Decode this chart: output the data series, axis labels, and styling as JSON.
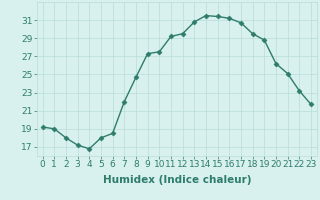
{
  "title": "",
  "xlabel": "Humidex (Indice chaleur)",
  "ylabel": "",
  "x_values": [
    0,
    1,
    2,
    3,
    4,
    5,
    6,
    7,
    8,
    9,
    10,
    11,
    12,
    13,
    14,
    15,
    16,
    17,
    18,
    19,
    20,
    21,
    22,
    23
  ],
  "y_values": [
    19.2,
    19.0,
    18.0,
    17.2,
    16.8,
    18.0,
    18.5,
    22.0,
    24.7,
    27.3,
    27.5,
    29.2,
    29.5,
    30.8,
    31.5,
    31.4,
    31.2,
    30.7,
    29.5,
    28.8,
    26.2,
    25.1,
    23.2,
    21.7
  ],
  "line_color": "#2e7d6b",
  "marker": "D",
  "marker_size": 2.5,
  "bg_color": "#d8f0ee",
  "grid_color": "#b8dcd8",
  "tick_color": "#2e7d6b",
  "label_color": "#2e7d6b",
  "ylim": [
    16,
    33
  ],
  "yticks": [
    17,
    19,
    21,
    23,
    25,
    27,
    29,
    31
  ],
  "xlim": [
    -0.5,
    23.5
  ],
  "xticks": [
    0,
    1,
    2,
    3,
    4,
    5,
    6,
    7,
    8,
    9,
    10,
    11,
    12,
    13,
    14,
    15,
    16,
    17,
    18,
    19,
    20,
    21,
    22,
    23
  ],
  "axis_fontsize": 6.5,
  "xlabel_fontsize": 7.5,
  "line_width": 1.0
}
